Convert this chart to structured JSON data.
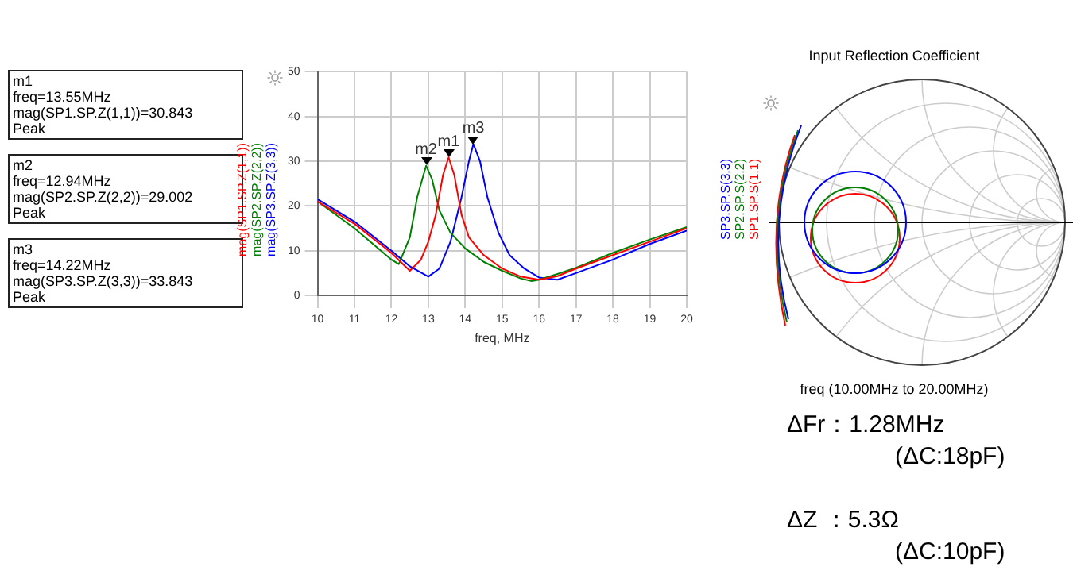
{
  "chart_data": [
    {
      "type": "line",
      "xlabel": "freq, MHz",
      "xlim": [
        10,
        20
      ],
      "xticks": [
        10,
        11,
        12,
        13,
        14,
        15,
        16,
        17,
        18,
        19,
        20
      ],
      "ylim": [
        0,
        50
      ],
      "yticks": [
        0,
        10,
        20,
        30,
        40,
        50
      ],
      "grid": true,
      "legend": "left",
      "marker": "none",
      "line_style": "solid",
      "series": [
        {
          "name": "mag(SP1.SP.Z(1,1))",
          "color": "#ff0000",
          "x": [
            10,
            11,
            12,
            12.5,
            12.8,
            13,
            13.2,
            13.4,
            13.55,
            13.7,
            13.9,
            14.1,
            14.5,
            15,
            15.5,
            16,
            16.5,
            17,
            18,
            19,
            20
          ],
          "values": [
            21,
            16,
            9.5,
            5.5,
            8,
            12,
            18,
            27,
            30.843,
            27,
            18,
            13,
            9,
            6,
            4.2,
            3.5,
            4.3,
            6,
            9,
            12,
            15
          ]
        },
        {
          "name": "mag(SP2.SP.Z(2,2))",
          "color": "#008000",
          "x": [
            10,
            11,
            12,
            12.2,
            12.5,
            12.7,
            12.94,
            13.1,
            13.3,
            13.6,
            14,
            14.5,
            15,
            15.5,
            15.8,
            16,
            16.5,
            17,
            18,
            19,
            20
          ],
          "values": [
            21,
            15,
            8,
            7,
            13,
            22,
            29.002,
            26,
            19,
            14,
            10.5,
            7.5,
            5.5,
            3.8,
            3.2,
            3.5,
            4.8,
            6.2,
            9.5,
            12.5,
            15.3
          ]
        },
        {
          "name": "mag(SP3.SP.Z(3,3))",
          "color": "#0000ff",
          "x": [
            10,
            11,
            12,
            12.5,
            13,
            13.3,
            13.6,
            13.9,
            14.1,
            14.22,
            14.4,
            14.6,
            14.9,
            15.2,
            15.6,
            16,
            16.5,
            17,
            18,
            19,
            20
          ],
          "values": [
            21.5,
            16.5,
            10,
            6.5,
            4.2,
            6,
            12,
            22,
            30,
            33.843,
            30,
            22,
            14,
            9,
            6,
            4,
            3.5,
            5,
            8,
            11.5,
            14.5
          ]
        }
      ],
      "annotations": [
        {
          "text": "m1",
          "x": 13.55,
          "y": 30.843
        },
        {
          "text": "m2",
          "x": 12.94,
          "y": 29.002
        },
        {
          "text": "m3",
          "x": 14.22,
          "y": 33.843
        },
        "m1\nfreq=13.55MHz\nmag(SP1.SP.Z(1,1))=30.843\nPeak",
        "m2\nfreq=12.94MHz\nmag(SP2.SP.Z(2,2))=29.002\nPeak",
        "m3\nfreq=14.22MHz\nmag(SP3.SP.Z(3,3))=33.843\nPeak"
      ]
    },
    {
      "type": "other",
      "title": "Input Reflection Coefficient",
      "xlabel": "freq (10.00MHz to 20.00MHz)",
      "series": [
        {
          "name": "SP1.SP.S(1,1)",
          "color": "#ff0000"
        },
        {
          "name": "SP2.SP.S(2,2)",
          "color": "#008000"
        },
        {
          "name": "SP3.SP.S(3,3)",
          "color": "#0000ff"
        }
      ],
      "annotations": [
        "ΔFr：1.28MHz\n(ΔC:18pF)",
        "ΔZ ：5.3Ω\n(ΔC:10pF)"
      ]
    }
  ]
}
